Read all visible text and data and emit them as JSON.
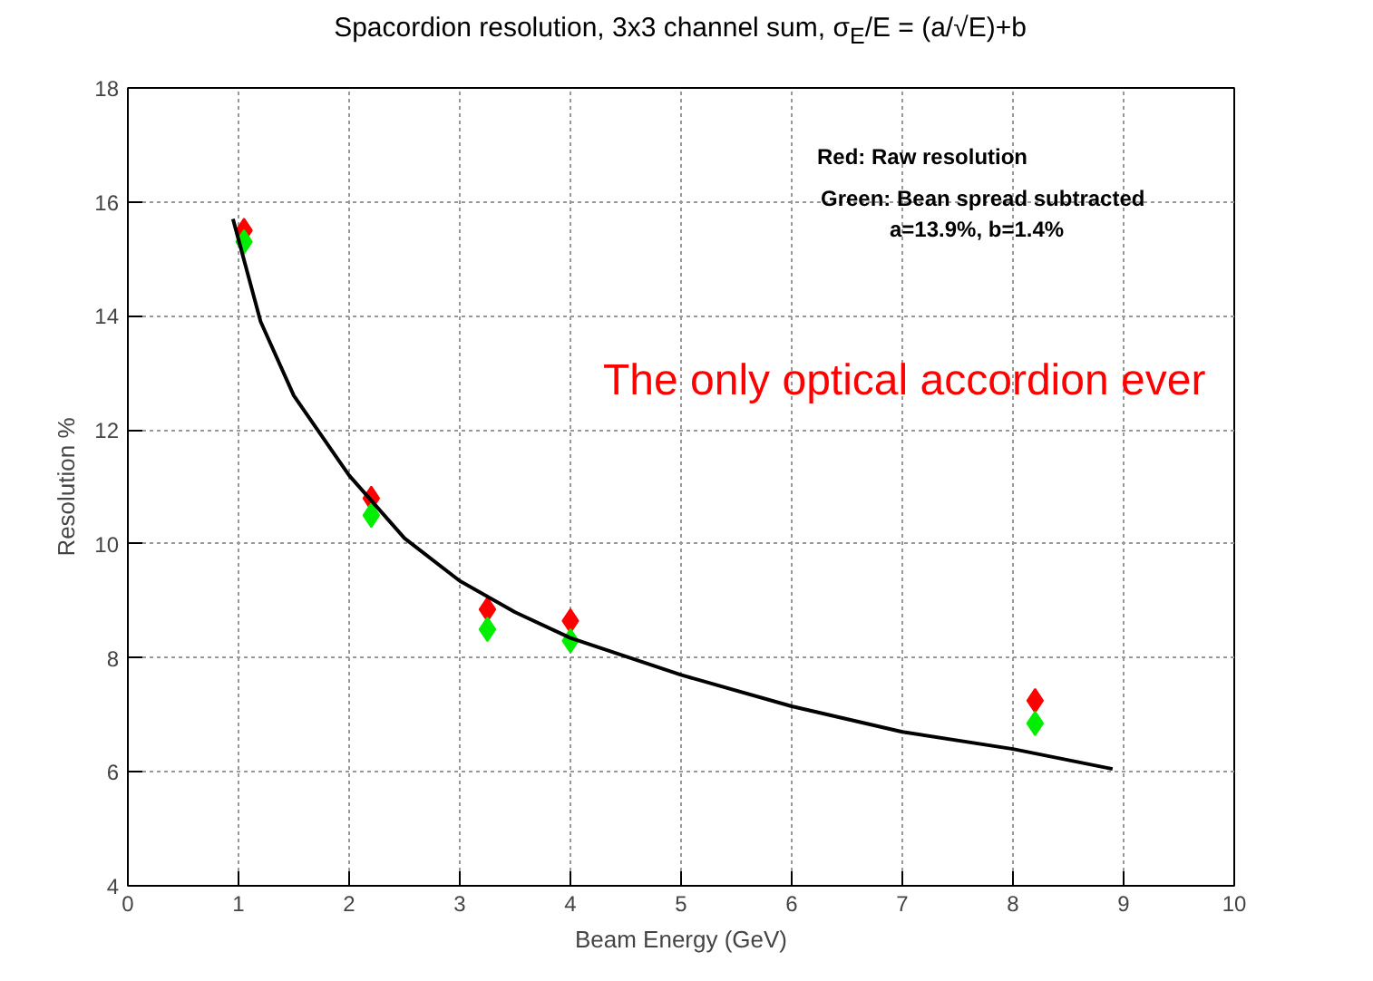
{
  "chart_data": {
    "type": "scatter",
    "title": "Spacordion resolution, 3x3 channel sum, σ$_{E}$/E = (a/√E)+b",
    "xlabel": "Beam Energy (GeV)",
    "ylabel": "Resolution %",
    "x": [
      1.05,
      2.2,
      3.25,
      4.0,
      8.2
    ],
    "series": [
      {
        "color": "#ff0000",
        "values": [
          15.5,
          10.8,
          8.85,
          8.65,
          7.25
        ]
      },
      {
        "color": "#00ee00",
        "values": [
          15.3,
          10.5,
          8.5,
          8.3,
          6.85
        ]
      },
      {
        "type": "line",
        "color": "#000000",
        "marker": "none",
        "x": [
          0.95,
          1.2,
          1.5,
          2.0,
          2.5,
          3.0,
          3.5,
          4.0,
          5.0,
          6.0,
          7.0,
          8.0,
          8.9
        ],
        "values": [
          15.7,
          13.9,
          12.6,
          11.2,
          10.1,
          9.35,
          8.8,
          8.35,
          7.7,
          7.15,
          6.7,
          6.4,
          6.05
        ]
      }
    ],
    "marker": "diamond",
    "xlim": [
      0,
      10
    ],
    "ylim": [
      4,
      18
    ],
    "xticks": [
      0,
      1,
      2,
      3,
      4,
      5,
      6,
      7,
      8,
      9,
      10
    ],
    "yticks": [
      4,
      6,
      8,
      10,
      12,
      14,
      16,
      18
    ],
    "grid": true,
    "annotations": [
      "Red: Raw resolution",
      "Green: Bean spread subtracted",
      "a=13.9%, b=1.4%",
      "The only optical accordion ever"
    ]
  }
}
